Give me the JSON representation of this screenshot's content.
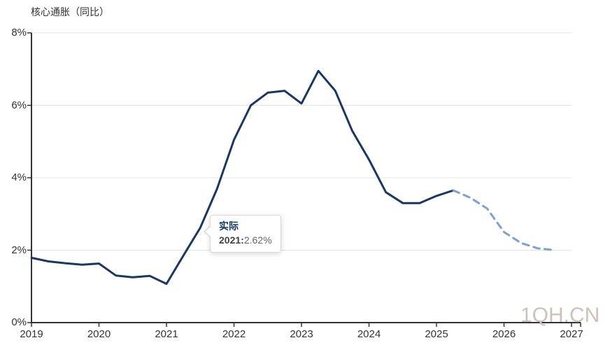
{
  "title": "核心通胀（同比）",
  "watermark": "1QH.CN",
  "tooltip": {
    "series_label": "实际",
    "x_label": "2021",
    "separator": ":",
    "value": "2.62%"
  },
  "colors": {
    "actual_line": "#1a3763",
    "forecast_line": "#7fa0d2",
    "grid": "#e4e4e4",
    "axis": "#333333",
    "text": "#333333",
    "tooltip_series": "#1a3a64",
    "tooltip_value": "#666666",
    "watermark": "#ccc2b7"
  },
  "chart_data": {
    "type": "line",
    "title": "核心通胀（同比）",
    "xlabel": "",
    "ylabel": "",
    "ylim": [
      0,
      8
    ],
    "y_tick_labels": [
      "0%",
      "2%",
      "4%",
      "6%",
      "8%"
    ],
    "y_tick_values": [
      0,
      2,
      4,
      6,
      8
    ],
    "x_tick_labels": [
      "2019",
      "2020",
      "2021",
      "2022",
      "2023",
      "2024",
      "2025",
      "2026",
      "2027"
    ],
    "x_tick_values": [
      2019,
      2020,
      2021,
      2022,
      2023,
      2024,
      2025,
      2026,
      2027
    ],
    "grid": "horizontal",
    "legend_position": "none",
    "x_unit": "quarterly (fractional years)",
    "series": [
      {
        "name": "实际",
        "style": "solid",
        "points": [
          [
            2019.0,
            1.79
          ],
          [
            2019.25,
            1.69
          ],
          [
            2019.5,
            1.64
          ],
          [
            2019.75,
            1.6
          ],
          [
            2020.0,
            1.63
          ],
          [
            2020.25,
            1.3
          ],
          [
            2020.5,
            1.25
          ],
          [
            2020.75,
            1.29
          ],
          [
            2021.0,
            1.07
          ],
          [
            2021.25,
            1.85
          ],
          [
            2021.5,
            2.62
          ],
          [
            2021.75,
            3.7
          ],
          [
            2022.0,
            5.05
          ],
          [
            2022.25,
            6.0
          ],
          [
            2022.5,
            6.35
          ],
          [
            2022.75,
            6.4
          ],
          [
            2023.0,
            6.05
          ],
          [
            2023.25,
            6.95
          ],
          [
            2023.5,
            6.4
          ],
          [
            2023.75,
            5.3
          ],
          [
            2024.0,
            4.5
          ],
          [
            2024.25,
            3.6
          ],
          [
            2024.5,
            3.3
          ],
          [
            2024.75,
            3.3
          ],
          [
            2025.0,
            3.5
          ],
          [
            2025.25,
            3.65
          ]
        ]
      },
      {
        "name": "",
        "style": "dashed",
        "points": [
          [
            2025.25,
            3.65
          ],
          [
            2025.5,
            3.45
          ],
          [
            2025.75,
            3.15
          ],
          [
            2026.0,
            2.5
          ],
          [
            2026.25,
            2.2
          ],
          [
            2026.5,
            2.05
          ],
          [
            2026.75,
            2.0
          ]
        ]
      }
    ]
  }
}
